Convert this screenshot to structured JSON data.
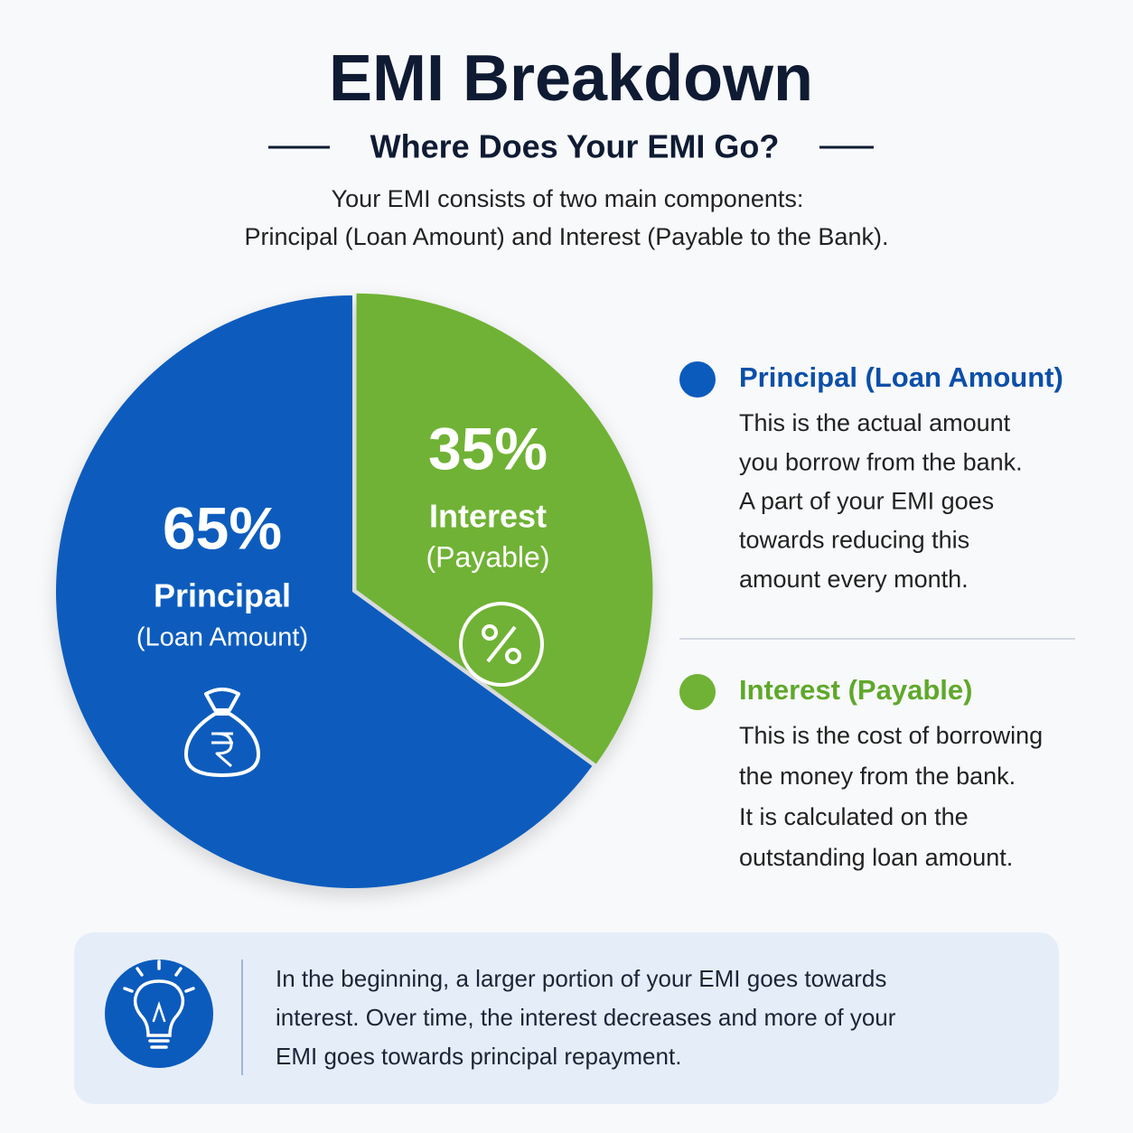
{
  "chart_data": {
    "type": "pie",
    "title": "EMI Breakdown",
    "subtitle": "Where Does Your EMI Go?",
    "description": [
      "Your EMI consists of two main components:",
      "Principal (Loan Amount) and Interest (Payable to the Bank)."
    ],
    "categories": [
      "Principal",
      "Interest"
    ],
    "slice_sublabels": [
      "(Loan Amount)",
      "(Payable)"
    ],
    "values": [
      65,
      35
    ],
    "value_labels": [
      "65%",
      "35%"
    ],
    "colors": [
      "#0b5bbd",
      "#6fb236"
    ]
  },
  "legend": [
    {
      "title": "Principal (Loan Amount)",
      "lines": [
        "This is the actual amount",
        "you borrow from the bank.",
        "A part of your EMI goes",
        "towards reducing this",
        "amount every month."
      ]
    },
    {
      "title": "Interest (Payable)",
      "lines": [
        "This is the cost of borrowing",
        "the money from the bank.",
        "It is calculated on the",
        "outstanding loan amount."
      ]
    }
  ],
  "tip": [
    "In the beginning, a larger portion of your EMI goes towards",
    "interest. Over time, the interest decreases and more of your",
    "EMI goes towards principal repayment."
  ]
}
